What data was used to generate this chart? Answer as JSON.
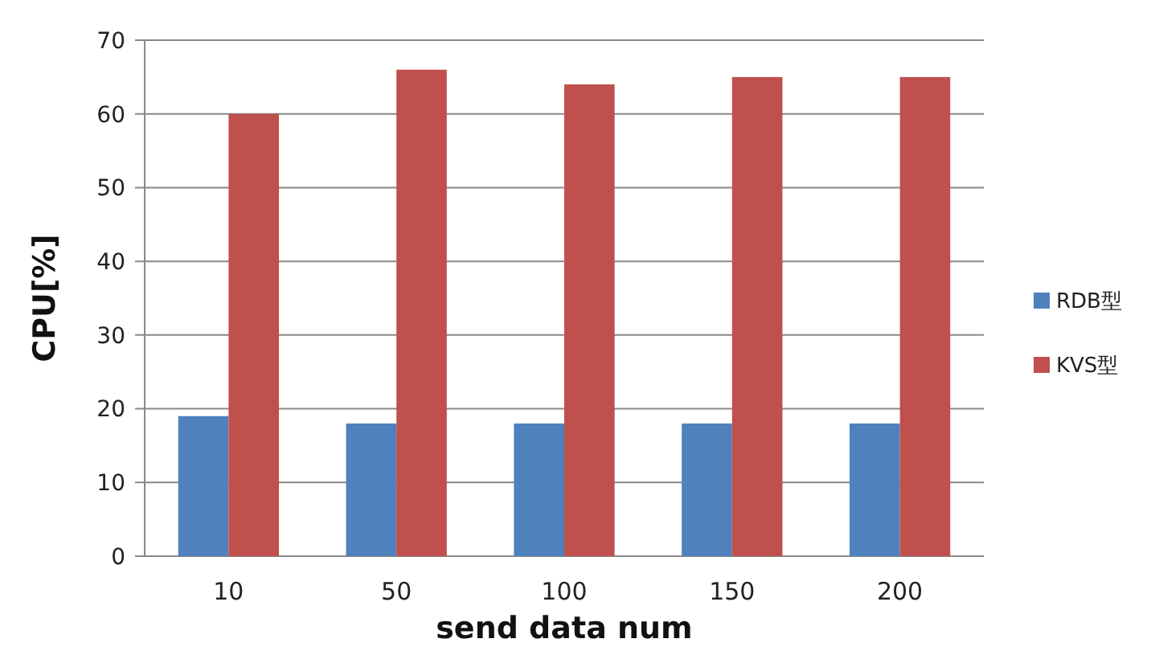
{
  "chart_data": {
    "type": "bar",
    "xlabel": "send data num",
    "ylabel": "CPU[%]",
    "categories": [
      "10",
      "50",
      "100",
      "150",
      "200"
    ],
    "series": [
      {
        "name": "RDB型",
        "color": "#4f81bd",
        "values": [
          19,
          18,
          18,
          18,
          18
        ]
      },
      {
        "name": "KVS型",
        "color": "#c0504d",
        "values": [
          60,
          66,
          64,
          65,
          65
        ]
      }
    ],
    "ylim": [
      0,
      70
    ],
    "yticks": [
      0,
      10,
      20,
      30,
      40,
      50,
      60,
      70
    ],
    "grid": "y",
    "legend": "right"
  }
}
